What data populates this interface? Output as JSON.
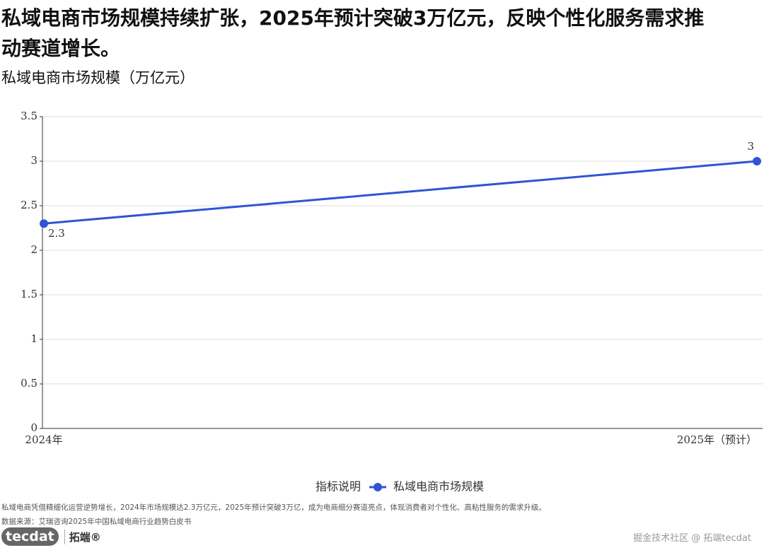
{
  "chart_data": {
    "type": "line",
    "title": "私域电商市场规模持续扩张，2025年预计突破3万亿元，反映个性化服务需求推动赛道增长。",
    "subtitle": "私域电商市场规模（万亿元）",
    "categories": [
      "2024年",
      "2025年（预计）"
    ],
    "series": [
      {
        "name": "私域电商市场规模",
        "color": "#2f54d6",
        "values": [
          2.3,
          3
        ]
      }
    ],
    "ylim": [
      0,
      3.5
    ],
    "yticks": [
      0,
      0.5,
      1,
      1.5,
      2,
      2.5,
      3,
      3.5
    ],
    "grid": true,
    "legend_title": "指标说明"
  },
  "footer": {
    "note": "私域电商凭借精细化运营逆势增长，2024年市场规模达2.3万亿元，2025年预计突破3万亿，成为电商细分赛道亮点，体现消费者对个性化、高粘性服务的需求升级。",
    "source": "数据来源：艾瑞咨询2025年中国私域电商行业趋势白皮书",
    "logo": "tecdat",
    "brand": "拓端®",
    "watermark": "掘金技术社区 @ 拓端tecdat"
  }
}
